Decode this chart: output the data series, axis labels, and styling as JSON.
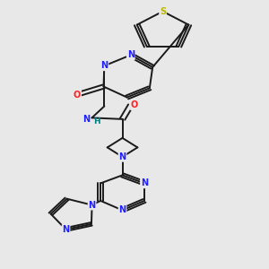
{
  "bg_color": "#e8e8e8",
  "bond_color": "#1a1a1a",
  "N_color": "#2020ff",
  "O_color": "#ff2020",
  "S_color": "#b8b800",
  "H_color": "#008080",
  "font_size": 7.0,
  "linewidth": 1.4,
  "figsize": [
    3.0,
    3.0
  ],
  "dpi": 100,
  "xlim": [
    0.15,
    0.85
  ],
  "ylim": [
    0.02,
    1.0
  ]
}
